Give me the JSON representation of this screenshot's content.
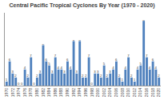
{
  "chart_data": {
    "type": "bar",
    "title": "Central Pacific Tropical Cyclones By Year (1970 - 2020)",
    "categories": [
      "1970",
      null,
      "1972",
      null,
      "1974",
      null,
      "1976",
      null,
      "1978",
      null,
      "1980",
      null,
      "1982",
      null,
      "1984",
      null,
      "1986",
      null,
      "1988",
      null,
      "1990",
      null,
      "1992",
      null,
      "1994",
      null,
      "1996",
      null,
      "1998",
      null,
      "2000",
      null,
      "2002",
      null,
      "2004",
      null,
      "2006",
      null,
      "2008",
      null,
      "2010",
      null,
      "2012",
      null,
      "2014",
      null,
      "2016",
      null,
      "2018",
      null,
      "2020"
    ],
    "values": [
      1,
      6,
      3,
      2,
      0,
      0,
      4,
      2,
      7,
      0,
      2,
      3,
      10,
      6,
      5,
      3,
      7,
      4,
      4,
      3,
      6,
      4,
      11,
      3,
      11,
      2,
      2,
      7,
      0,
      3,
      3,
      2,
      5,
      2,
      3,
      4,
      6,
      2,
      1,
      4,
      7,
      2,
      1,
      4,
      5,
      16,
      7,
      4,
      6,
      4,
      2
    ],
    "color": "#4f81bd",
    "ylim": [
      0,
      18
    ],
    "data_labels": true,
    "tick_labels": "x",
    "grid": false
  }
}
